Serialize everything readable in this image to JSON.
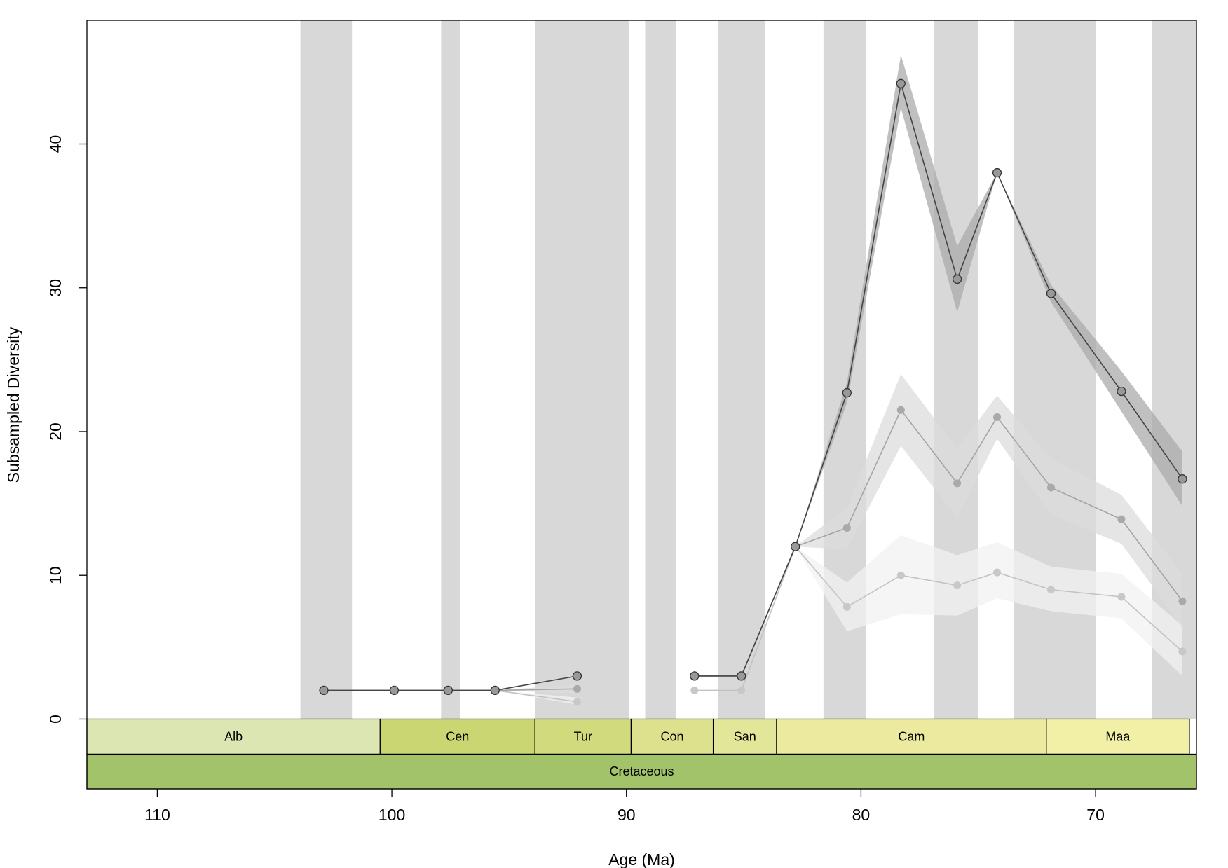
{
  "chart_data": {
    "type": "line",
    "xlabel": "Age (Ma)",
    "ylabel": "Subsampled Diversity",
    "xlim": [
      113,
      65.7
    ],
    "ylim": [
      -4.85,
      48.6
    ],
    "x_ticks": [
      110,
      100,
      90,
      80,
      70
    ],
    "y_ticks": [
      0,
      10,
      20,
      30,
      40
    ],
    "grid": false,
    "shaded_bins": [
      [
        103.9,
        101.7
      ],
      [
        97.9,
        97.1
      ],
      [
        93.9,
        89.9
      ],
      [
        89.2,
        87.9
      ],
      [
        86.1,
        84.1
      ],
      [
        81.6,
        79.8
      ],
      [
        76.9,
        75.0
      ],
      [
        73.5,
        70.0
      ],
      [
        67.6,
        65.7
      ]
    ],
    "stages": [
      {
        "label": "Alb",
        "start": 113.0,
        "end": 100.5,
        "color": "#DCE6B2"
      },
      {
        "label": "Cen",
        "start": 100.5,
        "end": 93.9,
        "color": "#C9D671"
      },
      {
        "label": "Tur",
        "start": 93.9,
        "end": 89.8,
        "color": "#D2DA7E"
      },
      {
        "label": "Con",
        "start": 89.8,
        "end": 86.3,
        "color": "#DDE18D"
      },
      {
        "label": "San",
        "start": 86.3,
        "end": 83.6,
        "color": "#E2E698"
      },
      {
        "label": "Cam",
        "start": 83.6,
        "end": 72.1,
        "color": "#EBEA9E"
      },
      {
        "label": "Maa",
        "start": 72.1,
        "end": 66.0,
        "color": "#F2F0A6"
      }
    ],
    "periods": [
      {
        "label": "Cretaceous",
        "start": 113.0,
        "end": 66.0,
        "color": "#A3C36A"
      }
    ],
    "series": [
      {
        "quorum": 0.4,
        "line_color": "#c2c2c2",
        "point_color": "#c8c8c8",
        "band_color": "#f1f1f1",
        "segments": [
          {
            "x": [
              102.9,
              99.9,
              97.6,
              95.6,
              92.1
            ],
            "y": [
              2,
              2,
              2,
              2,
              1.2
            ],
            "lo": [
              2,
              2,
              2,
              2,
              1.0
            ],
            "hi": [
              2,
              2,
              2,
              2,
              1.5
            ]
          },
          {
            "x": [
              87.1,
              85.1,
              82.8,
              80.6,
              78.3,
              75.9,
              74.2,
              71.9,
              68.9,
              66.3
            ],
            "y": [
              2,
              2,
              12,
              7.8,
              10,
              9.3,
              10.2,
              9,
              8.5,
              4.7
            ],
            "lo": [
              2,
              2,
              12,
              6.1,
              7.3,
              7.2,
              8.4,
              7.5,
              7.0,
              3.0
            ],
            "hi": [
              2,
              2,
              12,
              9.5,
              12.8,
              11.4,
              12.3,
              10.6,
              10.1,
              6.5
            ]
          }
        ]
      },
      {
        "quorum": 0.6,
        "line_color": "#a4a4a4",
        "point_color": "#a9a9a9",
        "band_color": "#dcdcdc",
        "segments": [
          {
            "x": [
              102.9,
              99.9,
              97.6,
              95.6,
              92.1
            ],
            "y": [
              2,
              2,
              2,
              2,
              2.1
            ],
            "lo": [
              2,
              2,
              2,
              2,
              1.8
            ],
            "hi": [
              2,
              2,
              2,
              2,
              2.4
            ]
          },
          {
            "x": [
              87.1,
              85.1,
              82.8,
              80.6,
              78.3,
              75.9,
              74.2,
              71.9,
              68.9,
              66.3
            ],
            "y": [
              3,
              3,
              12,
              13.3,
              21.5,
              16.4,
              21,
              16.1,
              13.9,
              8.2
            ],
            "lo": [
              3,
              3,
              12,
              11.8,
              19.0,
              14.0,
              19.5,
              14.2,
              12.2,
              6.4
            ],
            "hi": [
              3,
              3,
              12,
              14.7,
              24.0,
              18.8,
              22.5,
              18.1,
              15.6,
              10.1
            ]
          }
        ]
      },
      {
        "quorum": 0.8,
        "line_color": "#444444",
        "point_color": "#999999",
        "band_color": "#ababab",
        "segments": [
          {
            "x": [
              102.9,
              99.9,
              97.6,
              95.6,
              92.1
            ],
            "y": [
              2,
              2,
              2,
              2,
              3
            ],
            "lo": [
              2,
              2,
              2,
              2,
              3
            ],
            "hi": [
              2,
              2,
              2,
              2,
              3
            ]
          },
          {
            "x": [
              87.1,
              85.1,
              82.8,
              80.6,
              78.3,
              75.9,
              74.2,
              71.9,
              68.9,
              66.3
            ],
            "y": [
              3,
              3,
              12,
              22.7,
              44.2,
              30.6,
              38,
              29.6,
              22.8,
              16.7
            ],
            "lo": [
              3,
              3,
              12,
              22.0,
              42.5,
              28.3,
              38,
              29.0,
              21.4,
              14.8
            ],
            "hi": [
              3,
              3,
              12,
              23.4,
              46.2,
              32.9,
              38,
              30.2,
              24.2,
              18.6
            ]
          }
        ]
      }
    ]
  }
}
